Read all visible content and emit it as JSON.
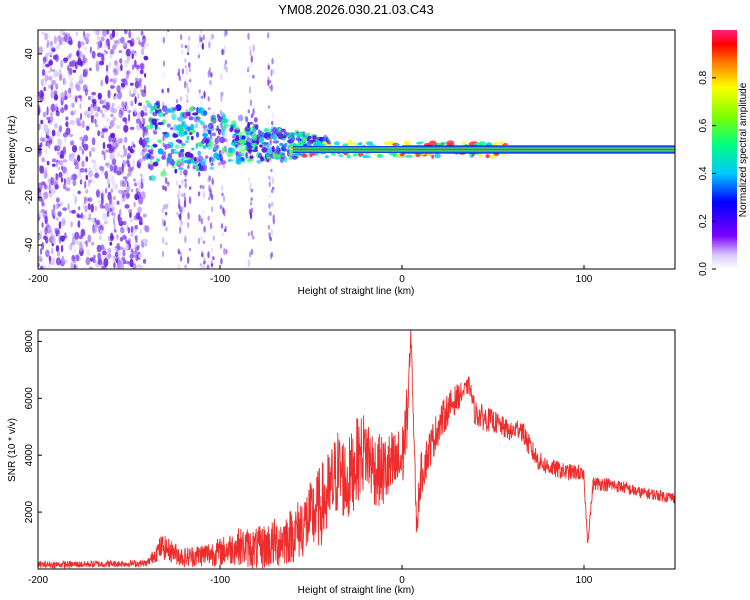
{
  "title": "YM08.2026.030.21.03.C43",
  "colors": {
    "trace": "#ee2c2c",
    "band": "#e83a3a",
    "frame": "#000000",
    "scatter": "#6a1ee0"
  },
  "chart_data": [
    {
      "type": "heatmap",
      "title": "YM08.2026.030.21.03.C43",
      "xlabel": "Height of straight line (km)",
      "ylabel": "Frequency (Hz)",
      "xlim": [
        -200,
        150
      ],
      "ylim": [
        -50,
        50
      ],
      "xticks": [
        -200,
        -100,
        0,
        100
      ],
      "xtick_labels": [
        "-200",
        "-100",
        "0",
        "100"
      ],
      "yticks": [
        -40,
        -20,
        0,
        20,
        40
      ],
      "ytick_labels": [
        "-40",
        "-20",
        "0",
        "20",
        "40"
      ],
      "description": "Spectral amplitude vs height; broadband noise below -140 km, energy converging to a narrow line near 0 Hz from about -60 km onward",
      "ridge": {
        "frequency_hz": 0,
        "start_km": -60,
        "end_km": 150
      },
      "colorbar": {
        "label": "Normalized spectral amplitude",
        "range": [
          0,
          1
        ],
        "ticks": [
          0.0,
          0.2,
          0.4,
          0.6,
          0.8
        ],
        "tick_labels": [
          "0.0",
          "0.2",
          "0.4",
          "0.6",
          "0.8"
        ]
      }
    },
    {
      "type": "line",
      "xlabel": "Height of straight line (km)",
      "ylabel": "SNR (10 * v/v)",
      "xlim": [
        -200,
        150
      ],
      "ylim": [
        0,
        8400
      ],
      "xticks": [
        -200,
        -100,
        0,
        100
      ],
      "xtick_labels": [
        "-200",
        "-100",
        "0",
        "100"
      ],
      "yticks": [
        2000,
        4000,
        6000,
        8000
      ],
      "ytick_labels": [
        "2000",
        "4000",
        "6000",
        "8000"
      ],
      "series": [
        {
          "name": "SNR",
          "x": [
            -200,
            -180,
            -160,
            -140,
            -132,
            -120,
            -110,
            -100,
            -90,
            -80,
            -70,
            -60,
            -50,
            -40,
            -35,
            -30,
            -25,
            -20,
            -15,
            -10,
            -5,
            0,
            3,
            5,
            8,
            10,
            15,
            20,
            25,
            30,
            35,
            37,
            40,
            45,
            50,
            55,
            60,
            65,
            70,
            75,
            80,
            90,
            97,
            100,
            102,
            105,
            110,
            120,
            130,
            140,
            150
          ],
          "y": [
            150,
            160,
            180,
            200,
            800,
            400,
            500,
            600,
            800,
            700,
            900,
            1200,
            1800,
            2600,
            3500,
            3000,
            3800,
            4200,
            3500,
            3400,
            3600,
            3800,
            5500,
            8200,
            1400,
            3200,
            4200,
            5000,
            5600,
            6000,
            6300,
            6500,
            5500,
            5300,
            5200,
            5000,
            4800,
            5000,
            4300,
            3800,
            3600,
            3400,
            3400,
            3200,
            900,
            3000,
            3000,
            2900,
            2700,
            2600,
            2500
          ],
          "noise": [
            120,
            120,
            120,
            120,
            450,
            350,
            420,
            500,
            650,
            750,
            900,
            1000,
            1300,
            1600,
            1500,
            1500,
            1500,
            1400,
            1300,
            1300,
            1300,
            1200,
            1100,
            400,
            500,
            800,
            700,
            650,
            600,
            500,
            300,
            300,
            450,
            450,
            400,
            380,
            350,
            400,
            400,
            350,
            320,
            300,
            280,
            280,
            100,
            250,
            250,
            220,
            200,
            200,
            200
          ]
        }
      ]
    }
  ]
}
